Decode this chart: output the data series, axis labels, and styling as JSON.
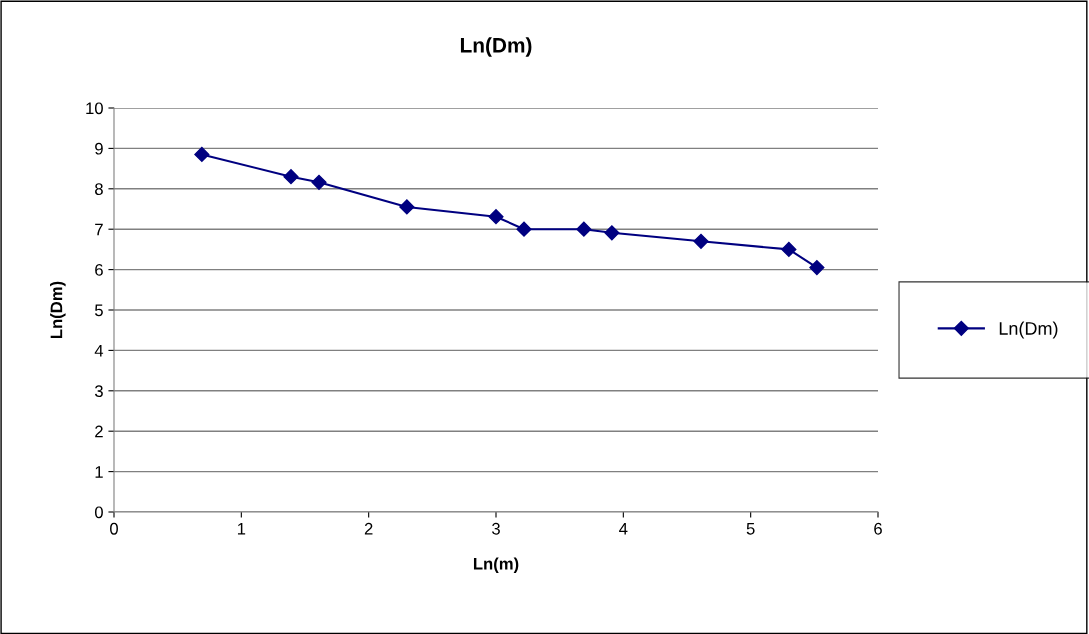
{
  "chart_data": {
    "type": "line",
    "title": "Ln(Dm)",
    "xlabel": "Ln(m)",
    "ylabel": "Ln(Dm)",
    "x": [
      0.69,
      1.39,
      1.61,
      2.3,
      3.0,
      3.22,
      3.69,
      3.91,
      4.61,
      5.3,
      5.52
    ],
    "series": [
      {
        "name": "Ln(Dm)",
        "color": "#000080",
        "values": [
          8.85,
          8.3,
          8.16,
          7.55,
          7.31,
          7.0,
          7.0,
          6.91,
          6.7,
          6.5,
          6.05
        ]
      }
    ],
    "xlim": [
      0,
      6
    ],
    "xticks": [
      0,
      1,
      2,
      3,
      4,
      5,
      6
    ],
    "ylim": [
      0,
      10
    ],
    "yticks": [
      0,
      1,
      2,
      3,
      4,
      5,
      6,
      7,
      8,
      9,
      10
    ],
    "grid": "y",
    "legend": "right",
    "marker": "diamond",
    "line_style": "solid"
  }
}
